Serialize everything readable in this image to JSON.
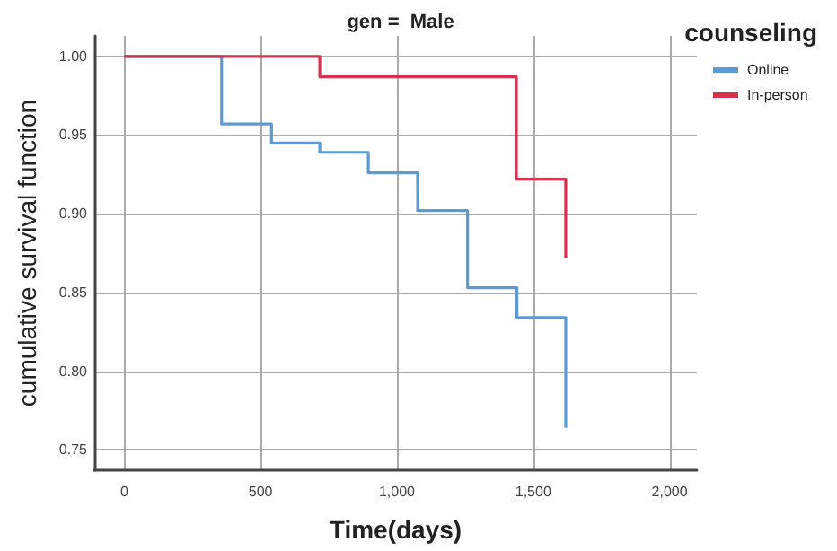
{
  "chart_data": {
    "type": "step",
    "title": "gen =  Male",
    "xlabel": "Time(days)",
    "ylabel": "cumulative survival function",
    "legend_title": "counseling",
    "series": [
      {
        "name": "Online",
        "color": "#5b9bd5",
        "x": [
          0,
          357,
          540,
          717,
          895,
          1076,
          1259,
          1440,
          1619
        ],
        "values": [
          1,
          0.957,
          0.945,
          0.939,
          0.926,
          0.902,
          0.853,
          0.834,
          0.764
        ]
      },
      {
        "name": "In-person",
        "color": "#d6324f",
        "x": [
          0,
          717,
          1438,
          1619
        ],
        "values": [
          1,
          0.987,
          0.922,
          0.872
        ]
      }
    ],
    "xlim": [
      -110,
      2100
    ],
    "xticks": [
      {
        "value": 0,
        "label": "0"
      },
      {
        "value": 500,
        "label": "500"
      },
      {
        "value": 1000,
        "label": "1,000"
      },
      {
        "value": 1500,
        "label": "1,500"
      },
      {
        "value": 2000,
        "label": "2,000"
      }
    ],
    "ylim": [
      0.737,
      1.013
    ],
    "yticks": [
      {
        "value": 0.75,
        "label": "0.75"
      },
      {
        "value": 0.8,
        "label": "0.80"
      },
      {
        "value": 0.85,
        "label": "0.85"
      },
      {
        "value": 0.9,
        "label": "0.90"
      },
      {
        "value": 0.95,
        "label": "0.95"
      },
      {
        "value": 1,
        "label": "1.00"
      }
    ],
    "grid": true,
    "legend": "top right",
    "marker": "none",
    "line_style": "solid"
  }
}
